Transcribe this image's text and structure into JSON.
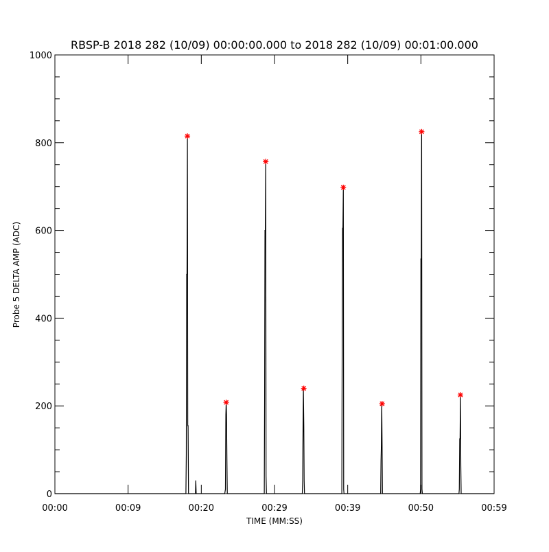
{
  "chart_data": {
    "type": "line",
    "title": "RBSP-B 2018 282 (10/09) 00:00:00.000 to 2018 282 (10/09) 00:01:00.000",
    "xlabel": "TIME (MM:SS)",
    "ylabel": "Probe 5 DELTA AMP (ADC)",
    "xlim": [
      0,
      60
    ],
    "ylim": [
      0,
      1000
    ],
    "x_ticks": [
      0,
      10,
      20,
      30,
      40,
      50,
      60
    ],
    "x_tick_labels": [
      "00:00",
      "00:09",
      "00:20",
      "00:29",
      "00:39",
      "00:50",
      "00:59"
    ],
    "y_ticks": [
      0,
      200,
      400,
      600,
      800,
      1000
    ],
    "y_tick_labels": [
      "0",
      "200",
      "400",
      "600",
      "800",
      "1000"
    ],
    "y_minor_step": 50,
    "grid": false,
    "trace_color": "#000000",
    "peak_color": "#ff0000",
    "trace": {
      "x": [
        0,
        17.9,
        17.95,
        18.0,
        18.05,
        18.1,
        18.15,
        18.2,
        18.25,
        19.2,
        19.25,
        19.3,
        23.2,
        23.3,
        23.35,
        23.4,
        23.45,
        23.5,
        23.55,
        28.6,
        28.65,
        28.7,
        28.75,
        28.8,
        28.85,
        28.9,
        28.95,
        33.8,
        33.85,
        33.9,
        33.95,
        34.0,
        34.05,
        34.1,
        34.15,
        39.2,
        39.25,
        39.3,
        39.35,
        39.4,
        39.45,
        39.5,
        44.5,
        44.55,
        44.6,
        44.65,
        44.7,
        44.75,
        44.8,
        49.9,
        49.95,
        50.0,
        50.05,
        50.1,
        50.15,
        50.2,
        55.2,
        55.25,
        55.3,
        55.35,
        55.4,
        55.45,
        55.5,
        55.55,
        60
      ],
      "y": [
        0,
        0,
        90,
        500,
        500,
        815,
        155,
        155,
        0,
        0,
        30,
        0,
        0,
        10,
        180,
        208,
        180,
        75,
        0,
        0,
        220,
        600,
        600,
        757,
        40,
        0,
        0,
        0,
        30,
        155,
        240,
        155,
        30,
        0,
        0,
        0,
        380,
        605,
        605,
        698,
        10,
        0,
        0,
        75,
        110,
        205,
        110,
        0,
        0,
        0,
        10,
        535,
        535,
        825,
        10,
        0,
        0,
        10,
        125,
        125,
        225,
        65,
        0,
        0,
        0
      ]
    },
    "peaks": {
      "x": [
        18.1,
        23.4,
        28.8,
        34.0,
        39.4,
        44.7,
        50.1,
        55.4
      ],
      "y": [
        815,
        208,
        757,
        240,
        698,
        205,
        825,
        225
      ]
    }
  }
}
